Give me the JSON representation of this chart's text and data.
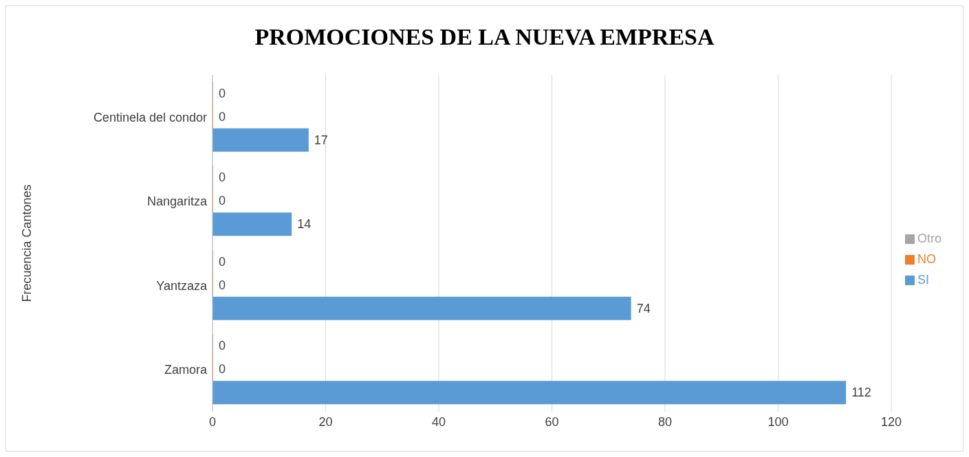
{
  "chart_data": {
    "type": "bar",
    "orientation": "horizontal",
    "title": "PROMOCIONES DE LA NUEVA EMPRESA",
    "ylabel": "Frecuencia Cantones",
    "categories": [
      "Centinela del condor",
      "Nangaritza",
      "Yantzaza",
      "Zamora"
    ],
    "series": [
      {
        "name": "Otro",
        "color": "#a5a5a5",
        "values": [
          0,
          0,
          0,
          0
        ]
      },
      {
        "name": "NO",
        "color": "#ed7d31",
        "values": [
          0,
          0,
          0,
          0
        ]
      },
      {
        "name": "SI",
        "color": "#5b9bd5",
        "values": [
          17,
          14,
          74,
          112
        ]
      }
    ],
    "xlim": [
      0,
      120
    ],
    "xticks": [
      0,
      20,
      40,
      60,
      80,
      100,
      120
    ],
    "grid": "x",
    "legend": "right",
    "data_labels": true
  }
}
